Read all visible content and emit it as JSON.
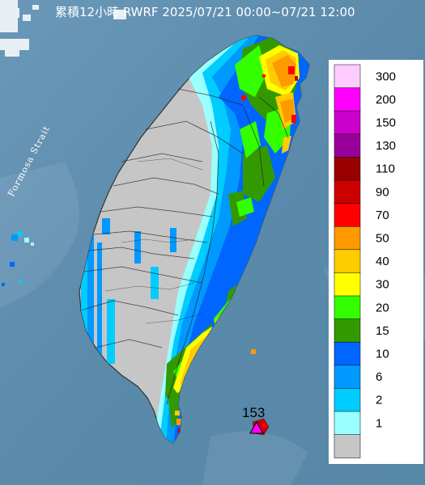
{
  "map": {
    "title": "累積12小時 RWRF 2025/07/21 00:00~07/21 12:00",
    "strait_label": "Formosa Strait",
    "max_value": "153",
    "colors": {
      "sea": "#5f8fb0",
      "no_rain": "#c6c6c6",
      "triangle": "#ff00ff"
    }
  },
  "legend": {
    "items": [
      {
        "label": "300",
        "color": "#ffccff"
      },
      {
        "label": "200",
        "color": "#ff00ff"
      },
      {
        "label": "150",
        "color": "#cc00cc"
      },
      {
        "label": "130",
        "color": "#990099"
      },
      {
        "label": "110",
        "color": "#990000"
      },
      {
        "label": "90",
        "color": "#cc0000"
      },
      {
        "label": "70",
        "color": "#ff0000"
      },
      {
        "label": "50",
        "color": "#ff9900"
      },
      {
        "label": "40",
        "color": "#ffcc00"
      },
      {
        "label": "30",
        "color": "#ffff00"
      },
      {
        "label": "20",
        "color": "#33ff00"
      },
      {
        "label": "15",
        "color": "#339900"
      },
      {
        "label": "10",
        "color": "#0066ff"
      },
      {
        "label": "6",
        "color": "#0099ff"
      },
      {
        "label": "2",
        "color": "#00ccff"
      },
      {
        "label": "1",
        "color": "#99ffff"
      },
      {
        "label": "",
        "color": "#c6c6c6"
      }
    ]
  }
}
